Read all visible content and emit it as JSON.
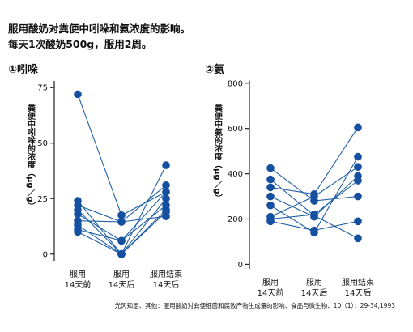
{
  "header": {
    "line1": "服用酸奶对粪便中吲哚和氨浓度的影响。",
    "line2": "每天1次酸奶500g，服用2周。"
  },
  "source": "光冈知足、其他：服用酸奶对粪便细菌和腐败产物生成量的影响、食品与微生物、10（1）：29-34,1993",
  "colors": {
    "series": "#1f5fa8",
    "marker": "#1550a0",
    "axis": "#222222"
  },
  "chart_data": [
    {
      "type": "line",
      "title": "①吲哚",
      "ylabel": "粪便中吲哚的浓度（μg／g）",
      "categories": [
        "服用\n14天前",
        "服用\n14天后",
        "服用结束\n14天后"
      ],
      "ylim": [
        -3,
        78
      ],
      "yticks": [
        0,
        25,
        50,
        75
      ],
      "series": [
        {
          "values": [
            72,
            17.5,
            28
          ]
        },
        {
          "values": [
            24,
            0,
            40
          ]
        },
        {
          "values": [
            22,
            14.5,
            31
          ]
        },
        {
          "values": [
            20,
            0,
            25
          ]
        },
        {
          "values": [
            18,
            6,
            22
          ]
        },
        {
          "values": [
            15,
            14.5,
            17
          ]
        },
        {
          "values": [
            13,
            0,
            19
          ]
        },
        {
          "values": [
            11,
            6,
            28
          ]
        },
        {
          "values": [
            10,
            0,
            20
          ]
        }
      ]
    },
    {
      "type": "line",
      "title": "②氨",
      "ylabel": "粪便中氨的浓度（μg／g）",
      "categories": [
        "服用\n14天前",
        "服用\n14天后",
        "服用结束\n14天后"
      ],
      "ylim": [
        -20,
        810
      ],
      "yticks": [
        0,
        200,
        400,
        600,
        800
      ],
      "series": [
        {
          "values": [
            425,
            280,
            300
          ]
        },
        {
          "values": [
            375,
            215,
            115
          ]
        },
        {
          "values": [
            340,
            310,
            605
          ]
        },
        {
          "values": [
            300,
            210,
            390
          ]
        },
        {
          "values": [
            260,
            140,
            475
          ]
        },
        {
          "values": [
            210,
            300,
            430
          ]
        },
        {
          "values": [
            200,
            220,
            370
          ]
        },
        {
          "values": [
            190,
            150,
            190
          ]
        }
      ]
    }
  ]
}
